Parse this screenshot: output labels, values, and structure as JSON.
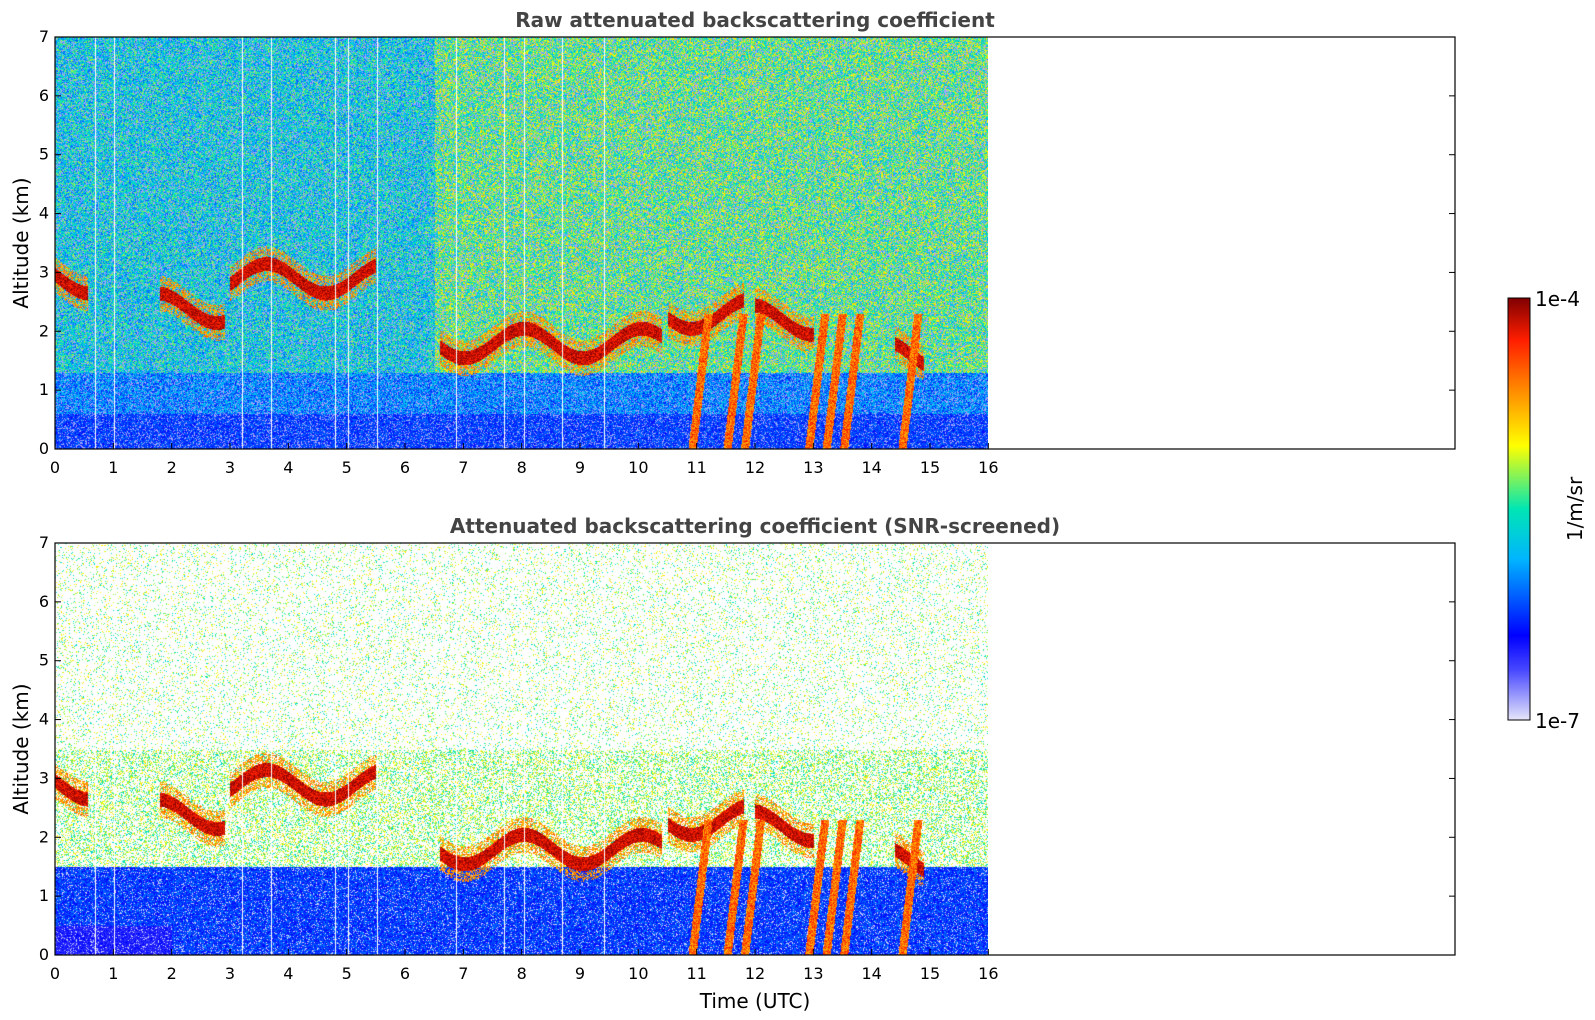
{
  "chart_data": [
    {
      "type": "heatmap",
      "title": "Raw attenuated backscattering coefficient",
      "xlabel": "",
      "ylabel": "Altitude (km)",
      "xlim": [
        0,
        24
      ],
      "ylim": [
        0,
        7
      ],
      "xticks": [
        0,
        1,
        2,
        3,
        4,
        5,
        6,
        7,
        8,
        9,
        10,
        11,
        12,
        13,
        14,
        15,
        16
      ],
      "yticks": [
        0,
        1,
        2,
        3,
        4,
        5,
        6,
        7
      ],
      "data_extent_hours": [
        0,
        16
      ],
      "variant": "raw",
      "features": {
        "near_surface_layer_top_km": 0.6,
        "cloud_layers": [
          {
            "t": [
              0.0,
              0.55
            ],
            "z": 2.9
          },
          {
            "t": [
              1.8,
              2.9
            ],
            "z": 2.4
          },
          {
            "t": [
              3.0,
              5.5
            ],
            "z": 2.9
          },
          {
            "t": [
              6.6,
              10.4
            ],
            "z": 1.8
          },
          {
            "t": [
              10.5,
              11.8
            ],
            "z": 2.3
          },
          {
            "t": [
              12.0,
              13.0
            ],
            "z": 2.2
          },
          {
            "t": [
              14.4,
              14.9
            ],
            "z": 1.6
          }
        ],
        "precip_streaks_hours": [
          11.2,
          11.8,
          12.1,
          13.2,
          13.5,
          13.8,
          14.8
        ]
      }
    },
    {
      "type": "heatmap",
      "title": "Attenuated backscattering coefficient (SNR-screened)",
      "xlabel": "Time (UTC)",
      "ylabel": "Altitude (km)",
      "xlim": [
        0,
        24
      ],
      "ylim": [
        0,
        7
      ],
      "xticks": [
        0,
        1,
        2,
        3,
        4,
        5,
        6,
        7,
        8,
        9,
        10,
        11,
        12,
        13,
        14,
        15,
        16
      ],
      "yticks": [
        0,
        1,
        2,
        3,
        4,
        5,
        6,
        7
      ],
      "data_extent_hours": [
        0,
        16
      ],
      "variant": "screened",
      "features": {
        "boundary_layer_top_km": 1.5,
        "cloud_layers": [
          {
            "t": [
              0.0,
              0.55
            ],
            "z": 2.9
          },
          {
            "t": [
              1.8,
              2.9
            ],
            "z": 2.4
          },
          {
            "t": [
              3.0,
              5.5
            ],
            "z": 2.9
          },
          {
            "t": [
              6.6,
              10.4
            ],
            "z": 1.8
          },
          {
            "t": [
              10.5,
              11.8
            ],
            "z": 2.3
          },
          {
            "t": [
              12.0,
              13.0
            ],
            "z": 2.2
          },
          {
            "t": [
              14.4,
              14.9
            ],
            "z": 1.6
          }
        ],
        "precip_streaks_hours": [
          11.2,
          11.8,
          12.1,
          13.2,
          13.5,
          13.8,
          14.8
        ]
      }
    }
  ],
  "colorbar": {
    "min_label": "1e-7",
    "max_label": "1e-4",
    "units_label": "1/m/sr",
    "colors": [
      "#e6e6fa",
      "#0000ff",
      "#00b4ff",
      "#00e6b4",
      "#ffff00",
      "#ff8c00",
      "#ff1e00",
      "#800000"
    ]
  }
}
